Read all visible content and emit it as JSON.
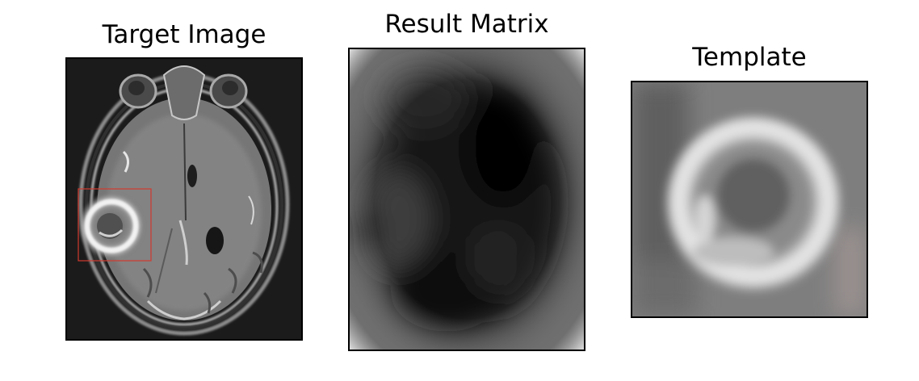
{
  "panels": {
    "target": {
      "title": "Target Image"
    },
    "result": {
      "title": "Result Matrix"
    },
    "template": {
      "title": "Template"
    }
  },
  "colors": {
    "match_box": "#d23a2e",
    "frame": "#000000",
    "background": "#ffffff"
  }
}
